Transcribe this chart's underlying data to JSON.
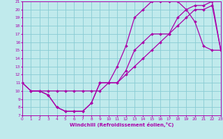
{
  "xlabel": "Windchill (Refroidissement éolien,°C)",
  "xlim": [
    0,
    23
  ],
  "ylim": [
    7,
    21
  ],
  "xticks": [
    0,
    1,
    2,
    3,
    4,
    5,
    6,
    7,
    8,
    9,
    10,
    11,
    12,
    13,
    14,
    15,
    16,
    17,
    18,
    19,
    20,
    21,
    22,
    23
  ],
  "yticks": [
    7,
    8,
    9,
    10,
    11,
    12,
    13,
    14,
    15,
    16,
    17,
    18,
    19,
    20,
    21
  ],
  "bg_color": "#c0eaec",
  "grid_color": "#88ccd4",
  "line_color": "#aa00aa",
  "line1_x": [
    0,
    1,
    2,
    3,
    4,
    5,
    6,
    7,
    8,
    9,
    10,
    11,
    12,
    13,
    14,
    15,
    16,
    17,
    18,
    19,
    20,
    21,
    22,
    23
  ],
  "line1_y": [
    11,
    10,
    10,
    9.5,
    8,
    7.5,
    7.5,
    7.5,
    8.5,
    11,
    11,
    11,
    12.5,
    15,
    16,
    17,
    17,
    17,
    19,
    20,
    20.5,
    20.5,
    21,
    15
  ],
  "line2_x": [
    1,
    2,
    3,
    4,
    5,
    6,
    7,
    8,
    9,
    10,
    11,
    12,
    13,
    14,
    15,
    16,
    17,
    18,
    19,
    20,
    21,
    22,
    23
  ],
  "line2_y": [
    10,
    10,
    9.5,
    8,
    7.5,
    7.5,
    7.5,
    8.5,
    11,
    11,
    13,
    15.5,
    19,
    20,
    21,
    21,
    21,
    21,
    20,
    18.5,
    15.5,
    15,
    15
  ],
  "line3_x": [
    0,
    1,
    2,
    3,
    4,
    5,
    6,
    7,
    8,
    9,
    10,
    11,
    12,
    13,
    14,
    15,
    16,
    17,
    18,
    19,
    20,
    21,
    22,
    23
  ],
  "line3_y": [
    11,
    10,
    10,
    10,
    10,
    10,
    10,
    10,
    10,
    10,
    11,
    11,
    12,
    13,
    14,
    15,
    16,
    17,
    18,
    19,
    20,
    20,
    20.5,
    15
  ],
  "marker": "D",
  "marker_size": 2,
  "line_width": 0.9
}
